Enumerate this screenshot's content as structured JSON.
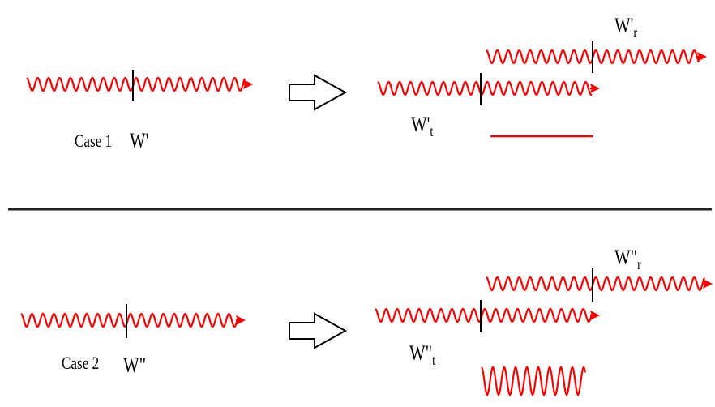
{
  "colors": {
    "wave": "#ff0000",
    "line": "#000000"
  },
  "case1": {
    "label": "Case 1",
    "incident": "W'",
    "transmitted": "W't",
    "reflected": "W'r"
  },
  "case2": {
    "label": "Case 2",
    "incident": "W\"",
    "transmitted": "W\"t",
    "reflected": "W\"r"
  },
  "arrow_icon": "right-hollow-arrow-icon"
}
